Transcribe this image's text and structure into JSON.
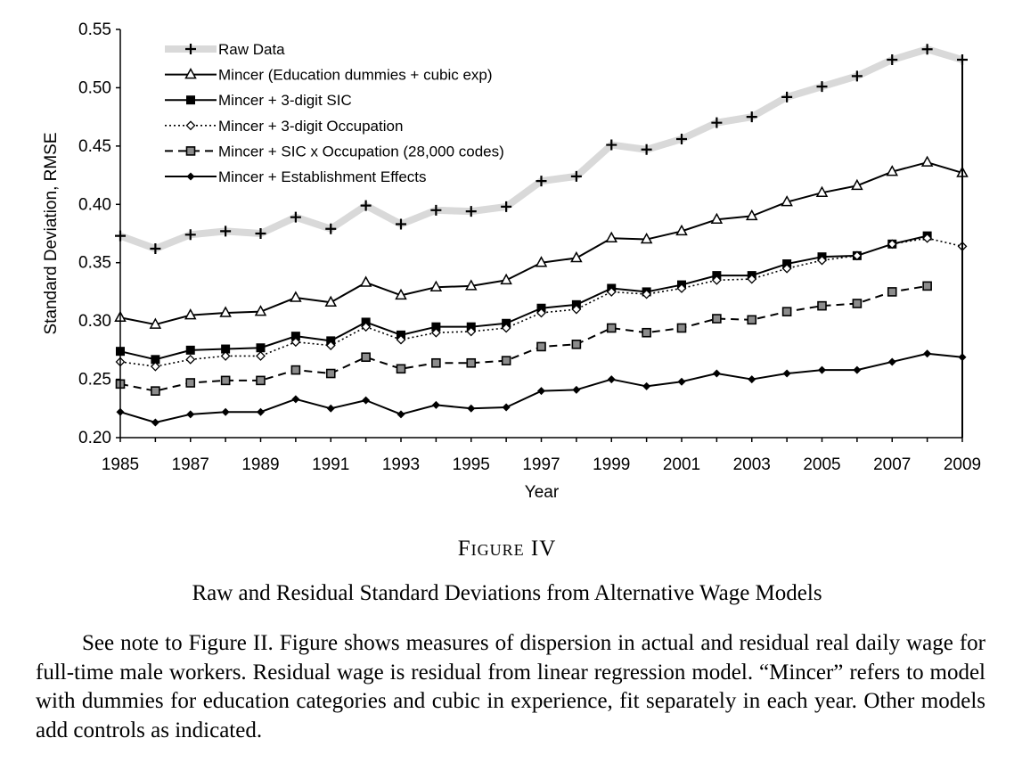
{
  "figure": {
    "label": "Figure IV",
    "title": "Raw and Residual Standard Deviations from Alternative Wage Models",
    "note": "See note to Figure II. Figure shows measures of dispersion in actual and residual real daily wage for full-time male workers. Residual wage is residual from linear regression model. “Mincer” refers to model with dummies for education categories and cubic in experience, fit separately in each year. Other models add controls as indicated."
  },
  "chart_data": {
    "type": "line",
    "xlabel": "Year",
    "ylabel": "Standard Deviation, RMSE",
    "x": [
      1985,
      1986,
      1987,
      1988,
      1989,
      1990,
      1991,
      1992,
      1993,
      1994,
      1995,
      1996,
      1997,
      1998,
      1999,
      2000,
      2001,
      2002,
      2003,
      2004,
      2005,
      2006,
      2007,
      2008,
      2009
    ],
    "xticks": [
      "1985",
      "1987",
      "1989",
      "1991",
      "1993",
      "1995",
      "1997",
      "1999",
      "2001",
      "2003",
      "2005",
      "2007",
      "2009"
    ],
    "yticks": [
      "0.20",
      "0.25",
      "0.30",
      "0.35",
      "0.40",
      "0.45",
      "0.50",
      "0.55"
    ],
    "xlim": [
      1985,
      2009
    ],
    "ylim": [
      0.2,
      0.55
    ],
    "legend_position": "top-left",
    "grid": false,
    "series": [
      {
        "name": "Raw Data",
        "marker": "plus",
        "line": "gray-band",
        "color": "#d9d9d9",
        "values": [
          0.373,
          0.362,
          0.374,
          0.377,
          0.375,
          0.389,
          0.379,
          0.399,
          0.383,
          0.395,
          0.394,
          0.398,
          0.42,
          0.424,
          0.451,
          0.447,
          0.456,
          0.47,
          0.475,
          0.492,
          0.501,
          0.51,
          0.524,
          0.533,
          0.524
        ]
      },
      {
        "name": "Mincer (Education dummies + cubic exp)",
        "marker": "triangle",
        "line": "solid",
        "color": "#000000",
        "values": [
          0.303,
          0.297,
          0.305,
          0.307,
          0.308,
          0.32,
          0.316,
          0.333,
          0.322,
          0.329,
          0.33,
          0.335,
          0.35,
          0.354,
          0.371,
          0.37,
          0.377,
          0.387,
          0.39,
          0.402,
          0.41,
          0.416,
          0.428,
          0.436,
          0.427
        ]
      },
      {
        "name": "Mincer + 3-digit SIC",
        "marker": "square-filled",
        "line": "solid",
        "color": "#000000",
        "values": [
          0.274,
          0.267,
          0.275,
          0.276,
          0.277,
          0.287,
          0.283,
          0.299,
          0.288,
          0.295,
          0.295,
          0.298,
          0.311,
          0.314,
          0.328,
          0.325,
          0.331,
          0.339,
          0.339,
          0.349,
          0.355,
          0.356,
          0.366,
          0.373,
          null
        ]
      },
      {
        "name": "Mincer + 3-digit Occupation",
        "marker": "diamond-open",
        "line": "dotted",
        "color": "#000000",
        "values": [
          0.265,
          0.261,
          0.267,
          0.27,
          0.27,
          0.282,
          0.279,
          0.295,
          0.284,
          0.29,
          0.291,
          0.294,
          0.307,
          0.31,
          0.325,
          0.323,
          0.328,
          0.335,
          0.336,
          0.345,
          0.352,
          0.356,
          0.366,
          0.371,
          0.364
        ]
      },
      {
        "name": "Mincer + SIC x Occupation (28,000 codes)",
        "marker": "square-gray",
        "line": "dashed",
        "color": "#000000",
        "values": [
          0.246,
          0.24,
          0.247,
          0.249,
          0.249,
          0.258,
          0.255,
          0.269,
          0.259,
          0.264,
          0.264,
          0.266,
          0.278,
          0.28,
          0.294,
          0.29,
          0.294,
          0.302,
          0.301,
          0.308,
          0.313,
          0.315,
          0.325,
          0.33,
          null
        ]
      },
      {
        "name": "Mincer + Establishment Effects",
        "marker": "diamond-filled",
        "line": "solid",
        "color": "#000000",
        "values": [
          0.222,
          0.213,
          0.22,
          0.222,
          0.222,
          0.233,
          0.225,
          0.232,
          0.22,
          0.228,
          0.225,
          0.226,
          0.24,
          0.241,
          0.25,
          0.244,
          0.248,
          0.255,
          0.25,
          0.255,
          0.258,
          0.258,
          0.265,
          0.272,
          0.269
        ]
      }
    ]
  }
}
